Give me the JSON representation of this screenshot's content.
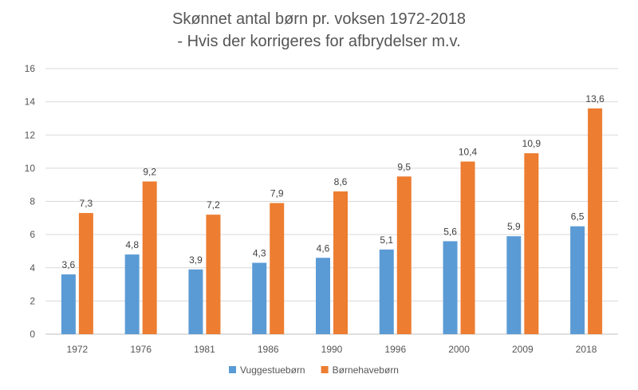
{
  "chart_data": {
    "type": "bar",
    "title": "Skønnet antal børn pr. voksen 1972-2018",
    "subtitle": "- Hvis der korrigeres for afbrydelser m.v.",
    "categories": [
      "1972",
      "1976",
      "1981",
      "1986",
      "1990",
      "1996",
      "2000",
      "2009",
      "2018"
    ],
    "series": [
      {
        "name": "Vuggestuebørn",
        "color": "#5b9bd5",
        "values": [
          3.6,
          4.8,
          3.9,
          4.3,
          4.6,
          5.1,
          5.6,
          5.9,
          6.5
        ],
        "labels": [
          "3,6",
          "4,8",
          "3,9",
          "4,3",
          "4,6",
          "5,1",
          "5,6",
          "5,9",
          "6,5"
        ]
      },
      {
        "name": "Børnehavebørn",
        "color": "#ed7d31",
        "values": [
          7.3,
          9.2,
          7.2,
          7.9,
          8.6,
          9.5,
          10.4,
          10.9,
          13.6
        ],
        "labels": [
          "7,3",
          "9,2",
          "7,2",
          "7,9",
          "8,6",
          "9,5",
          "10,4",
          "10,9",
          "13,6"
        ]
      }
    ],
    "ylim": [
      0,
      16
    ],
    "yticks": [
      0,
      2,
      4,
      6,
      8,
      10,
      12,
      14,
      16
    ],
    "grid": true,
    "legend": "bottom"
  }
}
